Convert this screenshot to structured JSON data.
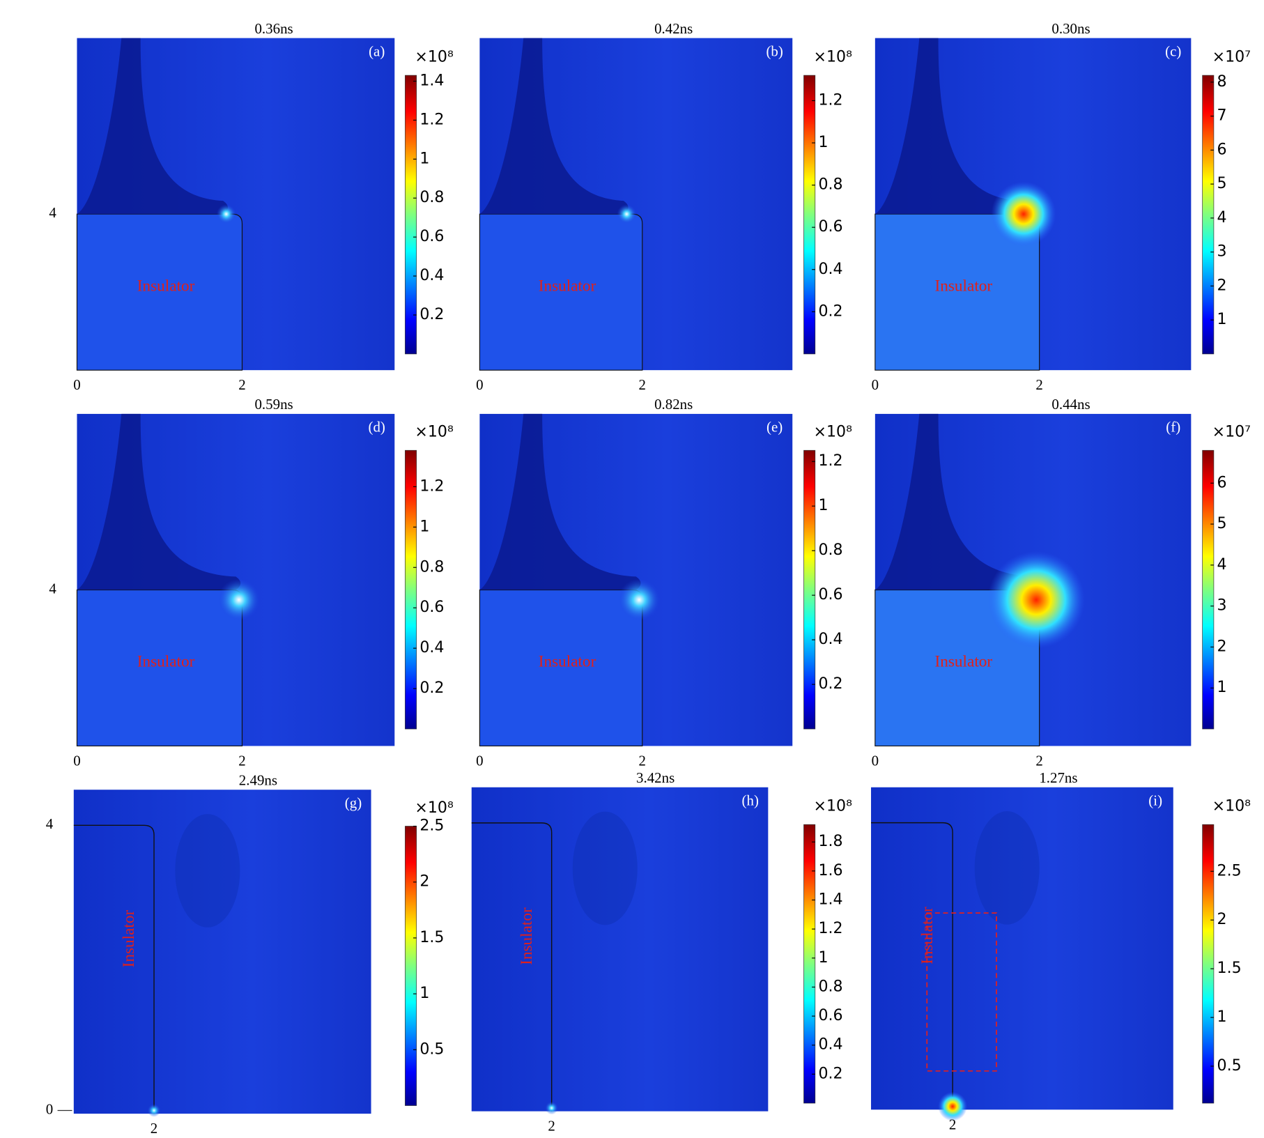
{
  "panels": [
    {
      "time": "0.36ns",
      "label": "(a)",
      "insulator": "Insulator",
      "colorbar": {
        "multiplier": "×10⁸",
        "clim": [
          0,
          1.43
        ],
        "ticks": [
          0.2,
          0.4,
          0.6,
          0.8,
          1,
          1.2,
          1.4
        ]
      },
      "x_labels": [
        "0",
        "2"
      ],
      "y_labels": [
        "4"
      ]
    },
    {
      "time": "0.42ns",
      "label": "(b)",
      "insulator": "Insulator",
      "colorbar": {
        "multiplier": "×10⁸",
        "clim": [
          0,
          1.32
        ],
        "ticks": [
          0.2,
          0.4,
          0.6,
          0.8,
          1,
          1.2
        ]
      },
      "x_labels": [
        "0",
        "2"
      ],
      "y_labels": []
    },
    {
      "time": "0.30ns",
      "label": "(c)",
      "insulator": "Insulator",
      "colorbar": {
        "multiplier": "×10⁷",
        "clim": [
          0,
          8.2
        ],
        "ticks": [
          1,
          2,
          3,
          4,
          5,
          6,
          7,
          8
        ]
      },
      "x_labels": [
        "0",
        "2"
      ],
      "y_labels": []
    },
    {
      "time": "0.59ns",
      "label": "(d)",
      "insulator": "Insulator",
      "colorbar": {
        "multiplier": "×10⁸",
        "clim": [
          0,
          1.38
        ],
        "ticks": [
          0.2,
          0.4,
          0.6,
          0.8,
          1,
          1.2
        ]
      },
      "x_labels": [
        "0",
        "2"
      ],
      "y_labels": [
        "4"
      ]
    },
    {
      "time": "0.82ns",
      "label": "(e)",
      "insulator": "Insulator",
      "colorbar": {
        "multiplier": "×10⁸",
        "clim": [
          0,
          1.25
        ],
        "ticks": [
          0.2,
          0.4,
          0.6,
          0.8,
          1,
          1.2
        ]
      },
      "x_labels": [
        "0",
        "2"
      ],
      "y_labels": []
    },
    {
      "time": "0.44ns",
      "label": "(f)",
      "insulator": "Insulator",
      "colorbar": {
        "multiplier": "×10⁷",
        "clim": [
          0,
          6.8
        ],
        "ticks": [
          1,
          2,
          3,
          4,
          5,
          6
        ]
      },
      "x_labels": [
        "0",
        "2"
      ],
      "y_labels": []
    },
    {
      "time": "2.49ns",
      "label": "(g)",
      "insulator": "Insulator",
      "colorbar": {
        "multiplier": "×10⁸",
        "clim": [
          0,
          2.5
        ],
        "ticks": [
          0.5,
          1,
          1.5,
          2,
          2.5
        ]
      },
      "x_labels": [
        "2"
      ],
      "y_labels": [
        "4",
        "0"
      ]
    },
    {
      "time": "3.42ns",
      "label": "(h)",
      "insulator": "Insulator",
      "colorbar": {
        "multiplier": "×10⁸",
        "clim": [
          0,
          1.92
        ],
        "ticks": [
          0.2,
          0.4,
          0.6,
          0.8,
          1,
          1.2,
          1.4,
          1.6,
          1.8
        ]
      },
      "x_labels": [
        "2"
      ],
      "y_labels": []
    },
    {
      "time": "1.27ns",
      "label": "(i)",
      "insulator": "Insulator",
      "colorbar": {
        "multiplier": "×10⁸",
        "clim": [
          0.12,
          2.98
        ],
        "ticks": [
          0.5,
          1,
          1.5,
          2,
          2.5
        ]
      },
      "x_labels": [
        "2"
      ],
      "y_labels": []
    }
  ]
}
